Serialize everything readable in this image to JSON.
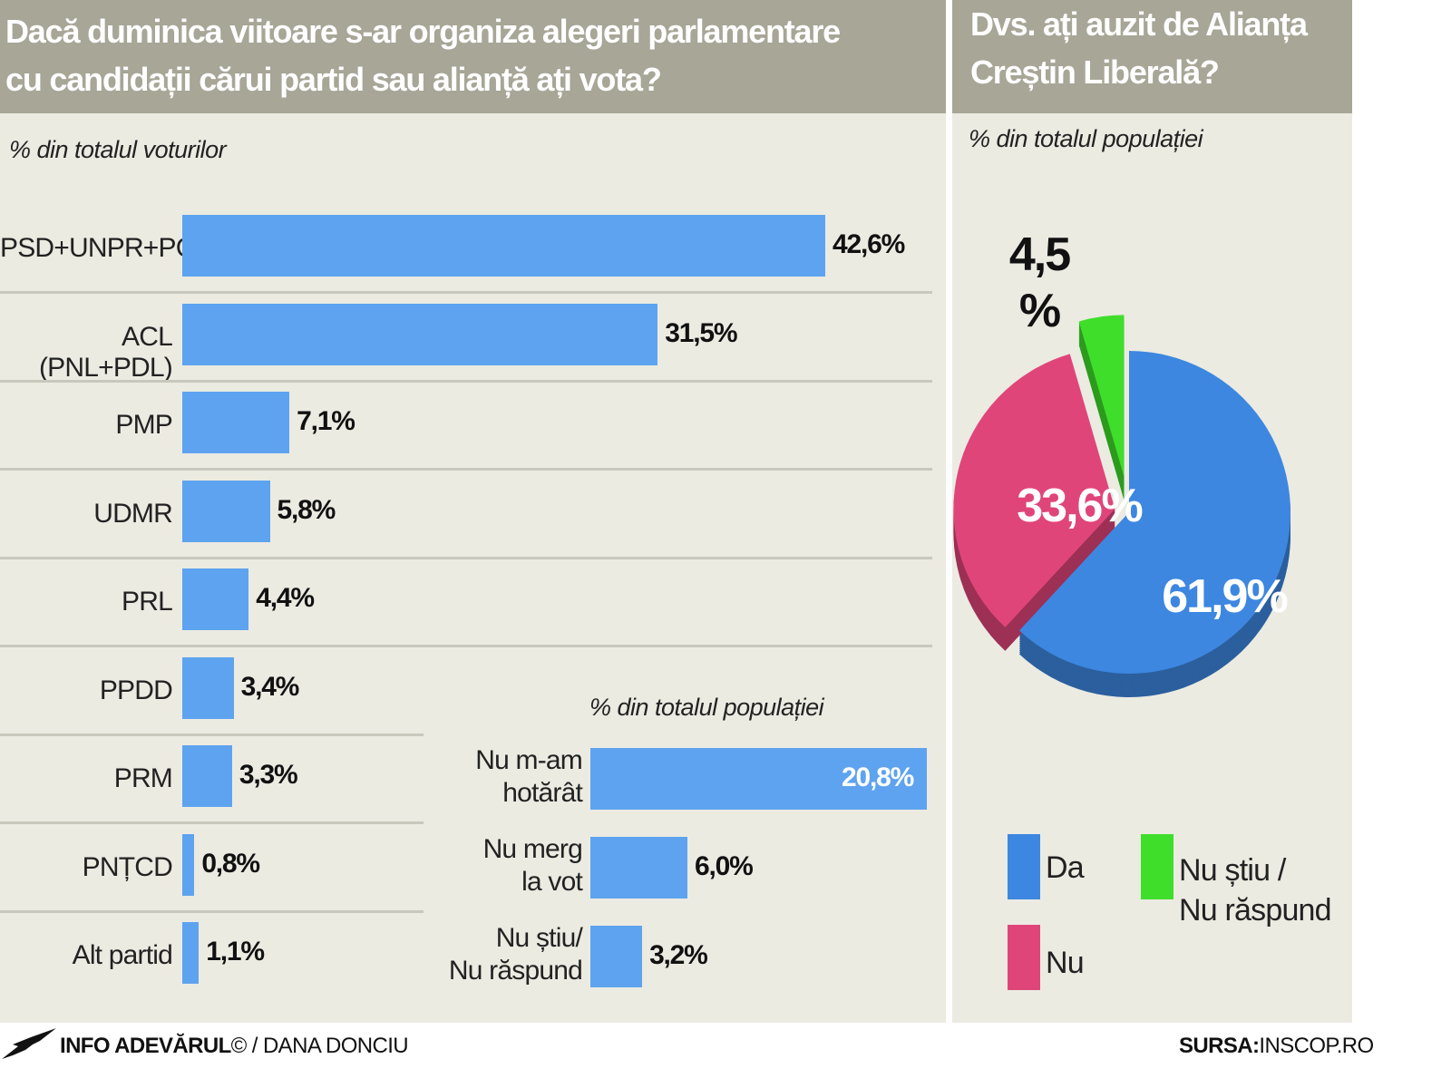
{
  "left_panel": {
    "title": "Dacă duminica viitoare s-ar organiza alegeri parlamentare\ncu candidații cărui partid sau alianță ați vota?",
    "subtitle": "% din totalul voturilor"
  },
  "sub_chart": {
    "subtitle": "% din totalul populației"
  },
  "right_panel": {
    "title": "Dvs. ați auzit de Alianța\nCreștin Liberală?",
    "subtitle": "% din totalul populației"
  },
  "chart_data": [
    {
      "type": "bar",
      "orientation": "horizontal",
      "categories": [
        "PSD+UNPR+PC",
        "ACL (PNL+PDL)",
        "PMP",
        "UDMR",
        "PRL",
        "PPDD",
        "PRM",
        "PNȚCD",
        "Alt partid"
      ],
      "values": [
        42.6,
        31.5,
        7.1,
        5.8,
        4.4,
        3.4,
        3.3,
        0.8,
        1.1
      ],
      "value_labels": [
        "42,6%",
        "31,5%",
        "7,1%",
        "5,8%",
        "4,4%",
        "3,4%",
        "3,3%",
        "0,8%",
        "1,1%"
      ],
      "title": "Dacă duminica viitoare s-ar organiza alegeri parlamentare cu candidații cărui partid sau alianță ați vota?",
      "subtitle": "% din totalul voturilor",
      "color": "#5ea3ef"
    },
    {
      "type": "bar",
      "orientation": "horizontal",
      "categories": [
        "Nu m-am\nhotărât",
        "Nu merg\nla vot",
        "Nu știu/\nNu răspund"
      ],
      "values": [
        20.8,
        6.0,
        3.2
      ],
      "value_labels": [
        "20,8%",
        "6,0%",
        "3,2%"
      ],
      "subtitle": "% din totalul populației",
      "color": "#5ea3ef"
    },
    {
      "type": "pie",
      "title": "Dvs. ați auzit de Alianța Creștin Liberală?",
      "subtitle": "% din totalul populației",
      "slices": [
        {
          "name": "Da",
          "value": 61.9,
          "label": "61,9%",
          "color": "#3d87e0"
        },
        {
          "name": "Nu",
          "value": 33.6,
          "label": "33,6%",
          "color": "#e0457a"
        },
        {
          "name": "Nu știu /\nNu răspund",
          "value": 4.5,
          "label": "4,5\n%",
          "color": "#3fde2b"
        }
      ],
      "legend_position": "bottom"
    }
  ],
  "footer": {
    "credit_bold": "INFO ADEVĂRUL",
    "credit_rest": "© / DANA DONCIU",
    "source_bold": "SURSA:",
    "source_rest": "INSCOP.RO"
  }
}
